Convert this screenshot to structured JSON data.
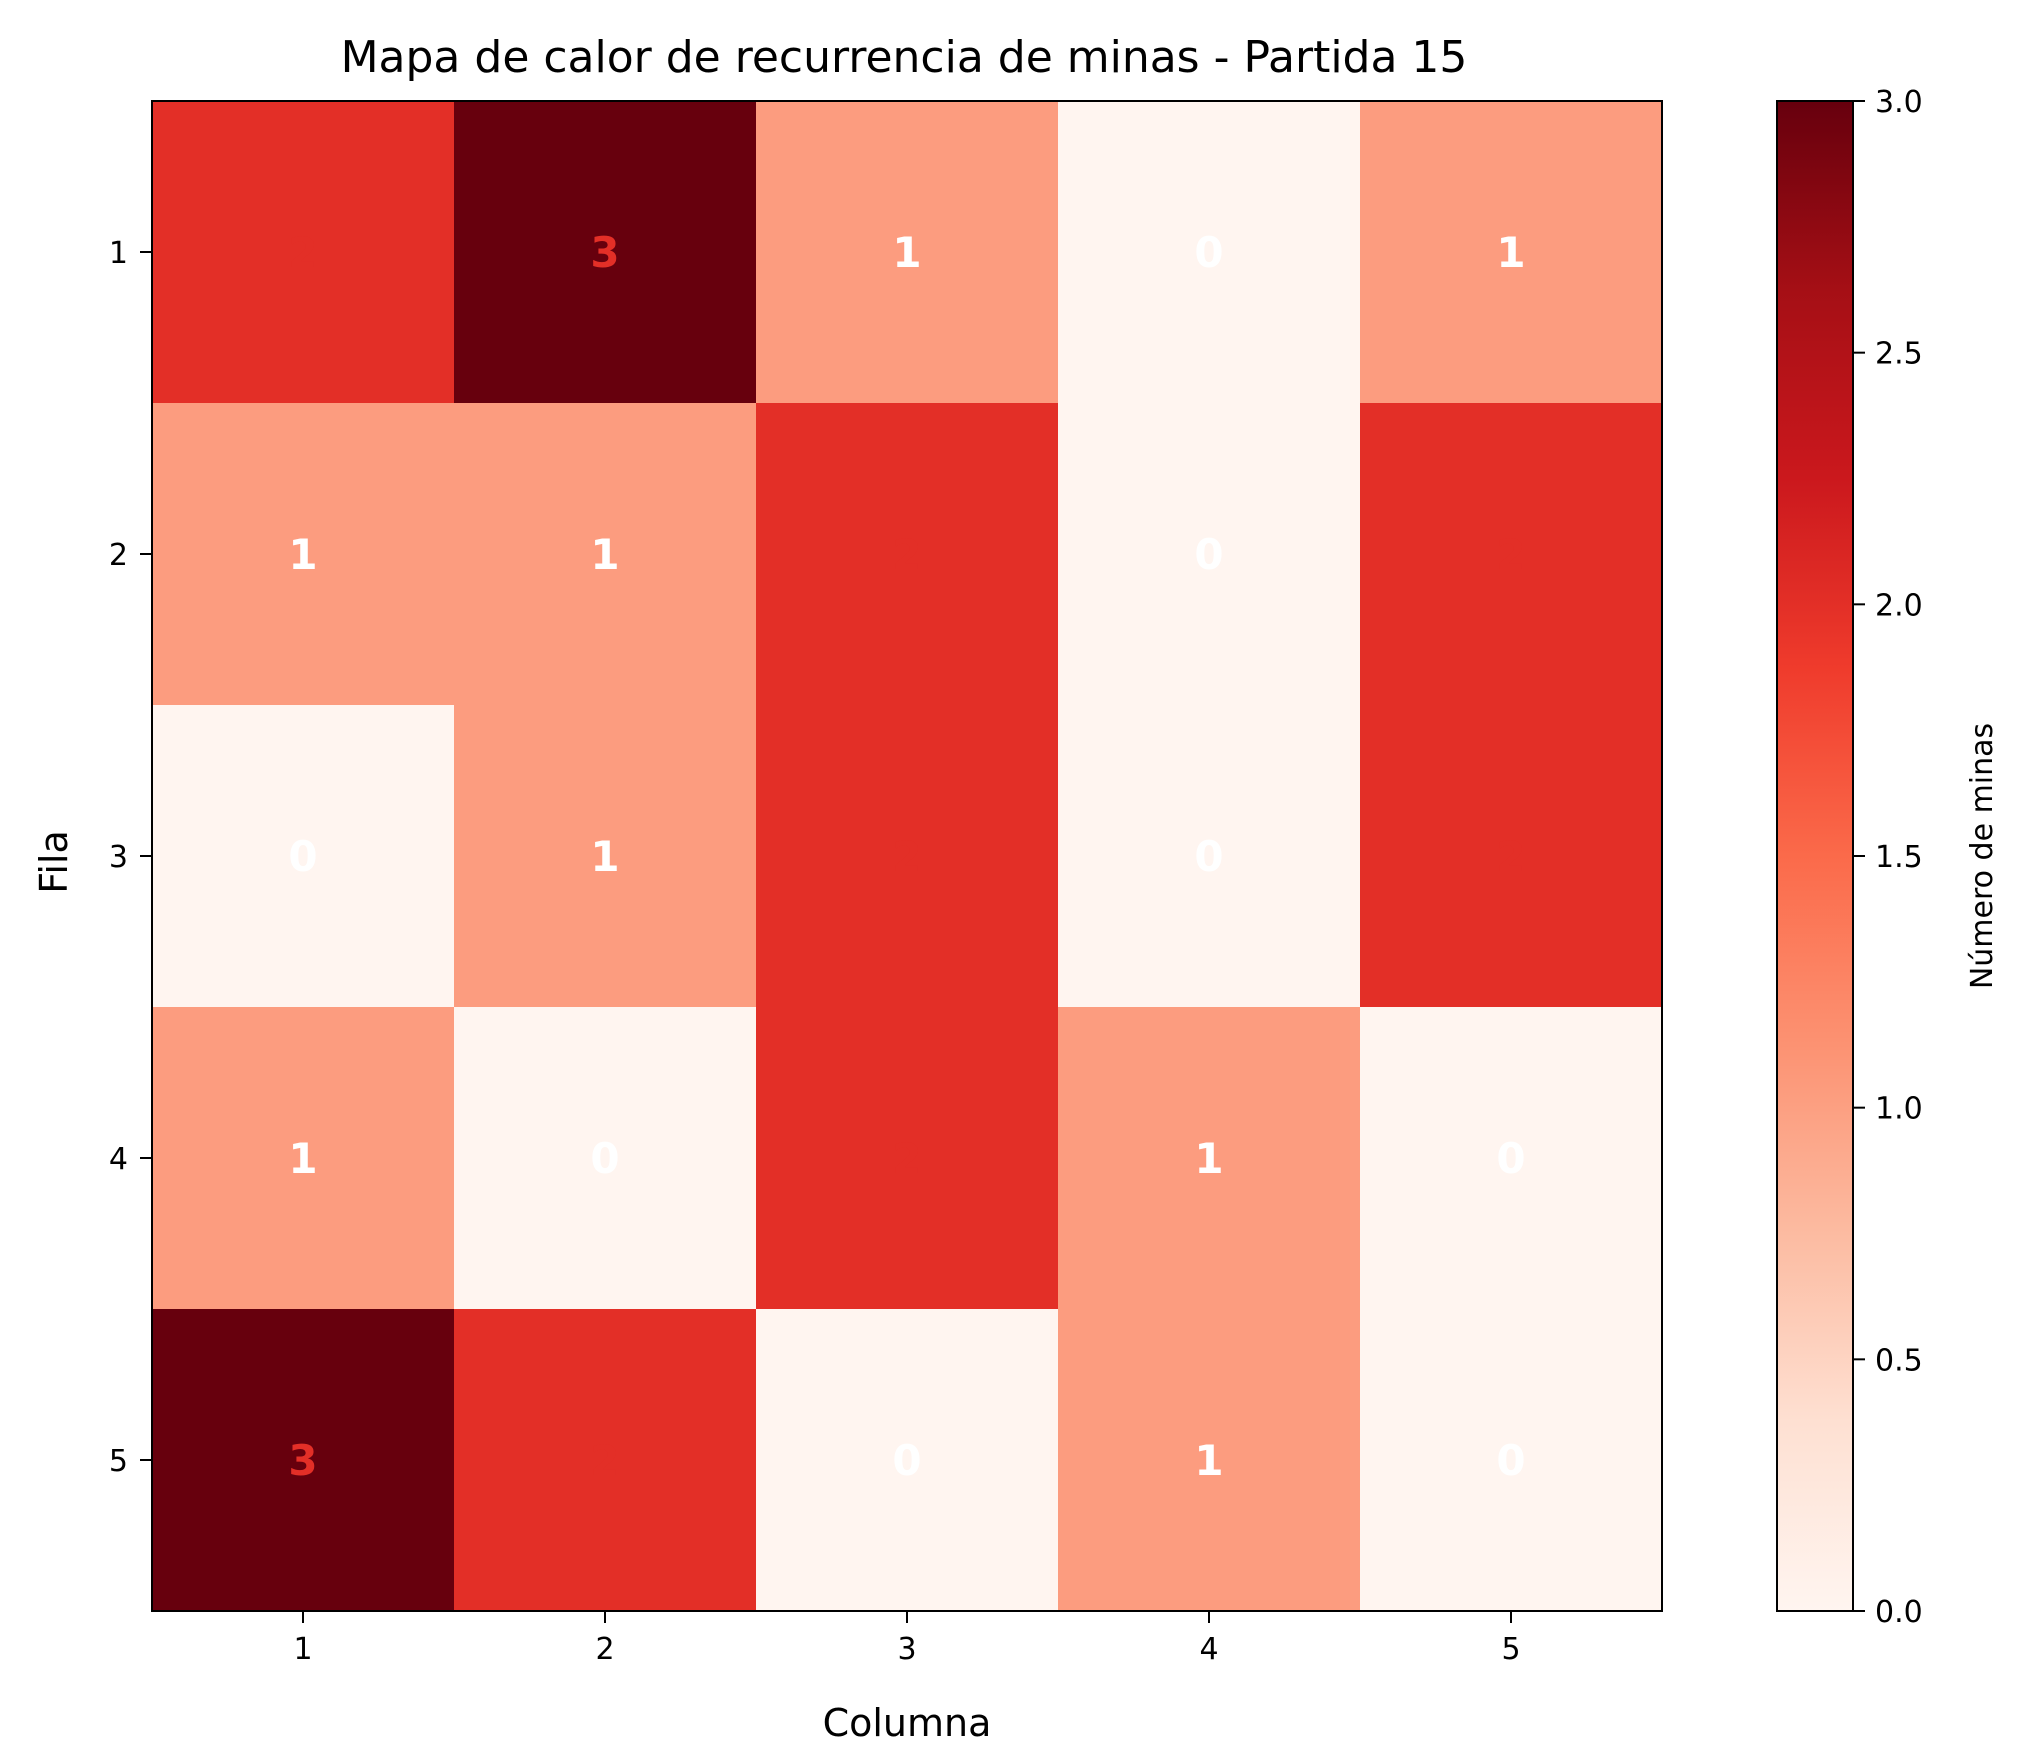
{
  "chart_data": {
    "type": "heatmap",
    "title": "Mapa de calor de recurrencia de minas - Partida 15",
    "xlabel": "Columna",
    "ylabel": "Fila",
    "x_ticks": [
      "1",
      "2",
      "3",
      "4",
      "5"
    ],
    "y_ticks": [
      "1",
      "2",
      "3",
      "4",
      "5"
    ],
    "values": [
      [
        2,
        3,
        1,
        0,
        1
      ],
      [
        1,
        1,
        2,
        0,
        2
      ],
      [
        0,
        1,
        2,
        0,
        2
      ],
      [
        1,
        0,
        2,
        1,
        0
      ],
      [
        3,
        2,
        0,
        1,
        0
      ]
    ],
    "colorbar": {
      "label": "Número de minas",
      "min": 0,
      "max": 3,
      "ticks": [
        "0.0",
        "0.5",
        "1.0",
        "1.5",
        "2.0",
        "2.5",
        "3.0"
      ]
    },
    "colormap": "Reds",
    "colors": {
      "0": "#fff5f0",
      "1": "#fc9c7f",
      "2": "#e32f27",
      "3": "#67000d"
    },
    "label_colors": {
      "0": "#ffffff",
      "1": "#ffffff",
      "2": "#e32f27",
      "3": "#e32f27"
    },
    "grid": false
  }
}
